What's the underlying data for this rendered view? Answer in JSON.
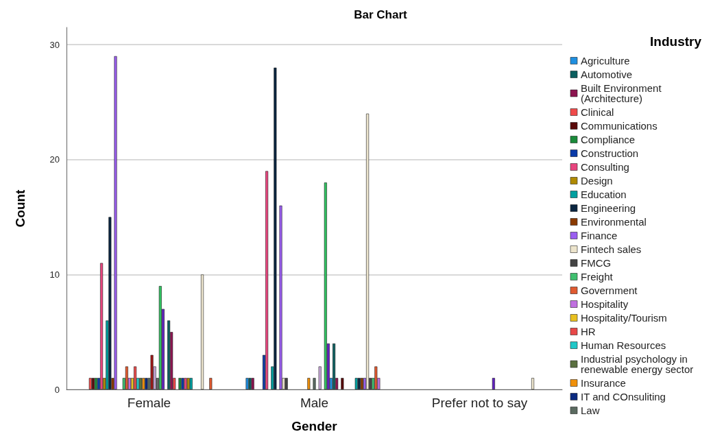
{
  "chart_data": {
    "type": "bar",
    "title": "Bar Chart",
    "xlabel": "Gender",
    "ylabel": "Count",
    "legend_title": "Industry",
    "categories": [
      "Female",
      "Male",
      "Prefer not to say"
    ],
    "ylim": [
      0,
      31.5
    ],
    "yticks": [
      0,
      10,
      20,
      30
    ],
    "grid": "y",
    "legend": "right",
    "series": [
      {
        "name": "Agriculture",
        "color": "#1f8fe0",
        "values": [
          null,
          1,
          null
        ]
      },
      {
        "name": "Automotive",
        "color": "#0b5e5e",
        "values": [
          null,
          1,
          null
        ]
      },
      {
        "name": "Built Environment (Architecture)",
        "color": "#8c1450",
        "values": [
          null,
          1,
          null
        ]
      },
      {
        "name": "Clinical",
        "color": "#f04a4a",
        "values": [
          1,
          null,
          null
        ]
      },
      {
        "name": "Communications",
        "color": "#5a0a0a",
        "values": [
          1,
          null,
          null
        ]
      },
      {
        "name": "Compliance",
        "color": "#1a8a3a",
        "values": [
          1,
          null,
          null
        ]
      },
      {
        "name": "Construction",
        "color": "#0a3aa8",
        "values": [
          1,
          3,
          null
        ]
      },
      {
        "name": "Consulting",
        "color": "#e8457e",
        "values": [
          11,
          19,
          null
        ]
      },
      {
        "name": "Design",
        "color": "#b08a00",
        "values": [
          1,
          null,
          null
        ]
      },
      {
        "name": "Education",
        "color": "#00a0a0",
        "values": [
          6,
          2,
          null
        ]
      },
      {
        "name": "Engineering",
        "color": "#0a2540",
        "values": [
          15,
          28,
          null
        ]
      },
      {
        "name": "Environmental",
        "color": "#8a3a00",
        "values": [
          1,
          null,
          null
        ]
      },
      {
        "name": "Finance",
        "color": "#9a5ef0",
        "values": [
          29,
          16,
          null
        ]
      },
      {
        "name": "Fintech sales",
        "color": "#ece4cc",
        "values": [
          null,
          1,
          null
        ]
      },
      {
        "name": "FMCG",
        "color": "#444444",
        "values": [
          null,
          1,
          null
        ]
      },
      {
        "name": "Freight",
        "color": "#40c070",
        "values": [
          1,
          null,
          null
        ]
      },
      {
        "name": "Government",
        "color": "#e05a30",
        "values": [
          2,
          null,
          null
        ]
      },
      {
        "name": "Hospitality",
        "color": "#c070e0",
        "values": [
          1,
          null,
          null
        ]
      },
      {
        "name": "Hospitality/Tourism",
        "color": "#e8c020",
        "values": [
          1,
          null,
          null
        ]
      },
      {
        "name": "HR",
        "color": "#e84848",
        "values": [
          2,
          null,
          null
        ]
      },
      {
        "name": "Human Resources",
        "color": "#20c8c8",
        "values": [
          1,
          null,
          null
        ]
      },
      {
        "name": "Industrial psychology in renewable energy sector",
        "color": "#5a7040",
        "values": [
          1,
          null,
          null
        ]
      },
      {
        "name": "Insurance",
        "color": "#f0900a",
        "values": [
          1,
          1,
          null
        ]
      },
      {
        "name": "IT and COnsuliting",
        "color": "#0a2a80",
        "values": [
          1,
          null,
          null
        ]
      },
      {
        "name": "Law",
        "color": "#5a6a60",
        "values": [
          1,
          1,
          null
        ]
      },
      {
        "color": "#a01818",
        "values": [
          3,
          null,
          null
        ]
      },
      {
        "color": "#c8a8d8",
        "values": [
          2,
          2,
          null
        ]
      },
      {
        "color": "#686868",
        "values": [
          1,
          null,
          null
        ]
      },
      {
        "color": "#30c060",
        "values": [
          9,
          18,
          null
        ]
      },
      {
        "color": "#6020c0",
        "values": [
          7,
          4,
          1
        ]
      },
      {
        "color": "#1f8fe0",
        "values": [
          null,
          1,
          null
        ]
      },
      {
        "color": "#0b5e5e",
        "values": [
          6,
          4,
          null
        ]
      },
      {
        "color": "#8c1450",
        "values": [
          5,
          1,
          null
        ]
      },
      {
        "color": "#f04a4a",
        "values": [
          1,
          null,
          null
        ]
      },
      {
        "color": "#5a0a0a",
        "values": [
          null,
          1,
          null
        ]
      },
      {
        "color": "#1a8a3a",
        "values": [
          1,
          null,
          null
        ]
      },
      {
        "color": "#0a3aa8",
        "values": [
          1,
          null,
          null
        ]
      },
      {
        "color": "#e8457e",
        "values": [
          1,
          null,
          null
        ]
      },
      {
        "color": "#b08a00",
        "values": [
          1,
          null,
          null
        ]
      },
      {
        "color": "#00a0a0",
        "values": [
          1,
          1,
          null
        ]
      },
      {
        "color": "#0a2540",
        "values": [
          null,
          1,
          null
        ]
      },
      {
        "color": "#8a3a00",
        "values": [
          null,
          1,
          null
        ]
      },
      {
        "color": "#9a5ef0",
        "values": [
          null,
          1,
          null
        ]
      },
      {
        "color": "#ece4cc",
        "values": [
          10,
          24,
          1
        ]
      },
      {
        "color": "#444444",
        "values": [
          null,
          1,
          null
        ]
      },
      {
        "color": "#40c070",
        "values": [
          null,
          1,
          null
        ]
      },
      {
        "color": "#e05a30",
        "values": [
          1,
          2,
          null
        ]
      },
      {
        "color": "#c070e0",
        "values": [
          null,
          1,
          null
        ]
      },
      {
        "color": "#e8c020",
        "values": [
          null,
          null,
          null
        ]
      }
    ]
  }
}
